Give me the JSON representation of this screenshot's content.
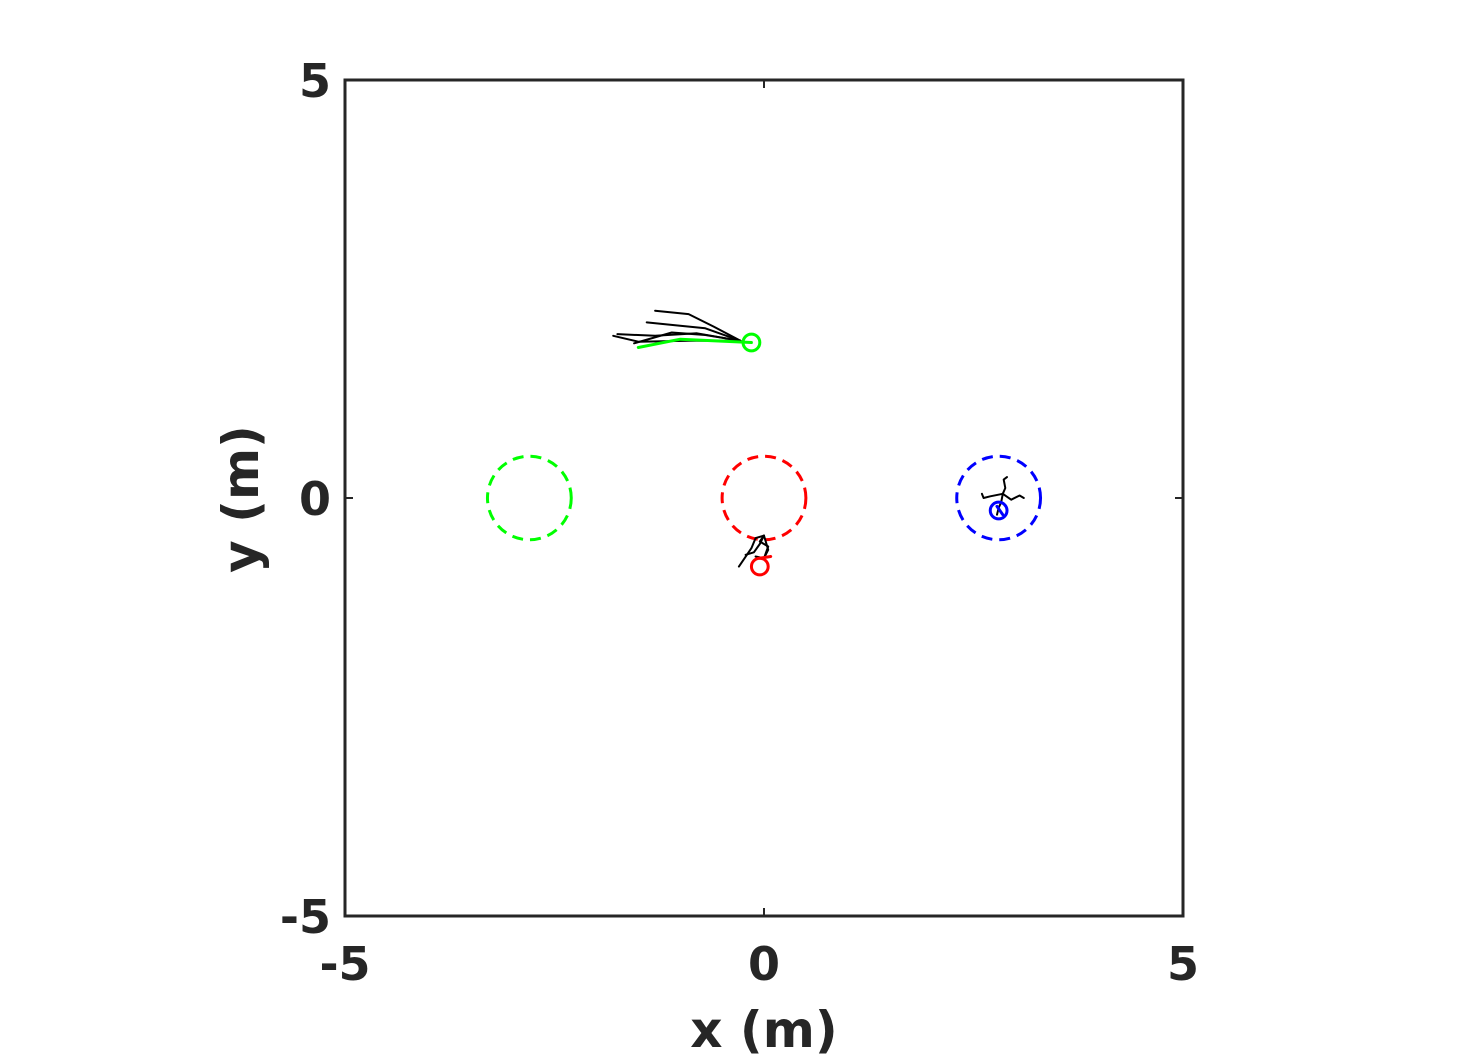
{
  "chart_data": {
    "type": "scatter",
    "title": "",
    "xlabel": "x (m)",
    "ylabel": "y (m)",
    "xlim": [
      -5,
      5
    ],
    "ylim": [
      -5,
      5
    ],
    "xticks": [
      -5,
      0,
      5
    ],
    "yticks": [
      -5,
      0,
      5
    ],
    "xtick_labels": [
      "-5",
      "0",
      "5"
    ],
    "ytick_labels": [
      "-5",
      "0",
      "5"
    ],
    "grid": false,
    "colors": {
      "axes": "#262626",
      "green": "#00ff00",
      "red": "#ff0000",
      "blue": "#0000ff",
      "trajectory": "#000000"
    },
    "goal_regions": [
      {
        "color": "green",
        "cx": -2.8,
        "cy": 0.0,
        "r": 0.5
      },
      {
        "color": "red",
        "cx": 0.0,
        "cy": 0.0,
        "r": 0.5
      },
      {
        "color": "blue",
        "cx": 2.8,
        "cy": 0.0,
        "r": 0.5
      }
    ],
    "agents": [
      {
        "color": "green",
        "x": -0.15,
        "y": 1.86,
        "r": 0.1,
        "trail": [
          [
            -0.15,
            1.86
          ],
          [
            -1.0,
            1.9
          ],
          [
            -1.5,
            1.8
          ]
        ]
      },
      {
        "color": "red",
        "x": -0.05,
        "y": -0.82,
        "r": 0.1,
        "trail": [
          [
            -0.05,
            -0.72
          ],
          [
            0.08,
            -0.7
          ]
        ]
      },
      {
        "color": "blue",
        "x": 2.8,
        "y": -0.15,
        "r": 0.1,
        "trail": [
          [
            2.78,
            -0.1
          ],
          [
            2.85,
            -0.2
          ]
        ]
      }
    ],
    "predicted_paths": [
      [
        [
          -0.28,
          1.88
        ],
        [
          -0.6,
          2.05
        ],
        [
          -0.9,
          2.2
        ],
        [
          -1.3,
          2.24
        ]
      ],
      [
        [
          -0.28,
          1.88
        ],
        [
          -0.7,
          2.03
        ],
        [
          -1.0,
          2.06
        ],
        [
          -1.4,
          2.1
        ]
      ],
      [
        [
          -0.28,
          1.88
        ],
        [
          -0.8,
          1.97
        ],
        [
          -1.3,
          1.94
        ],
        [
          -1.75,
          1.96
        ]
      ],
      [
        [
          -0.28,
          1.88
        ],
        [
          -0.9,
          1.88
        ],
        [
          -1.5,
          1.87
        ],
        [
          -1.8,
          1.94
        ]
      ],
      [
        [
          -0.28,
          1.88
        ],
        [
          -0.7,
          1.95
        ],
        [
          -1.1,
          1.98
        ],
        [
          -1.55,
          1.85
        ]
      ],
      [
        [
          0.0,
          -0.45
        ],
        [
          -0.05,
          -0.55
        ],
        [
          -0.12,
          -0.65
        ],
        [
          -0.22,
          -0.68
        ]
      ],
      [
        [
          0.0,
          -0.45
        ],
        [
          -0.1,
          -0.48
        ],
        [
          -0.15,
          -0.6
        ],
        [
          -0.3,
          -0.82
        ]
      ],
      [
        [
          0.0,
          -0.45
        ],
        [
          -0.05,
          -0.52
        ],
        [
          0.05,
          -0.58
        ],
        [
          0.0,
          -0.72
        ]
      ],
      [
        [
          0.0,
          -0.45
        ],
        [
          0.05,
          -0.62
        ],
        [
          0.0,
          -0.72
        ],
        [
          -0.1,
          -0.7
        ]
      ],
      [
        [
          2.85,
          0.05
        ],
        [
          2.95,
          -0.02
        ],
        [
          3.05,
          0.03
        ],
        [
          3.1,
          0.0
        ]
      ],
      [
        [
          2.85,
          0.05
        ],
        [
          2.7,
          0.02
        ],
        [
          2.62,
          0.0
        ],
        [
          2.6,
          0.05
        ]
      ],
      [
        [
          2.85,
          0.05
        ],
        [
          2.88,
          0.12
        ],
        [
          2.86,
          0.22
        ],
        [
          2.9,
          0.25
        ]
      ],
      [
        [
          2.85,
          0.05
        ],
        [
          2.83,
          -0.05
        ],
        [
          2.8,
          -0.12
        ],
        [
          2.78,
          -0.2
        ]
      ]
    ]
  }
}
